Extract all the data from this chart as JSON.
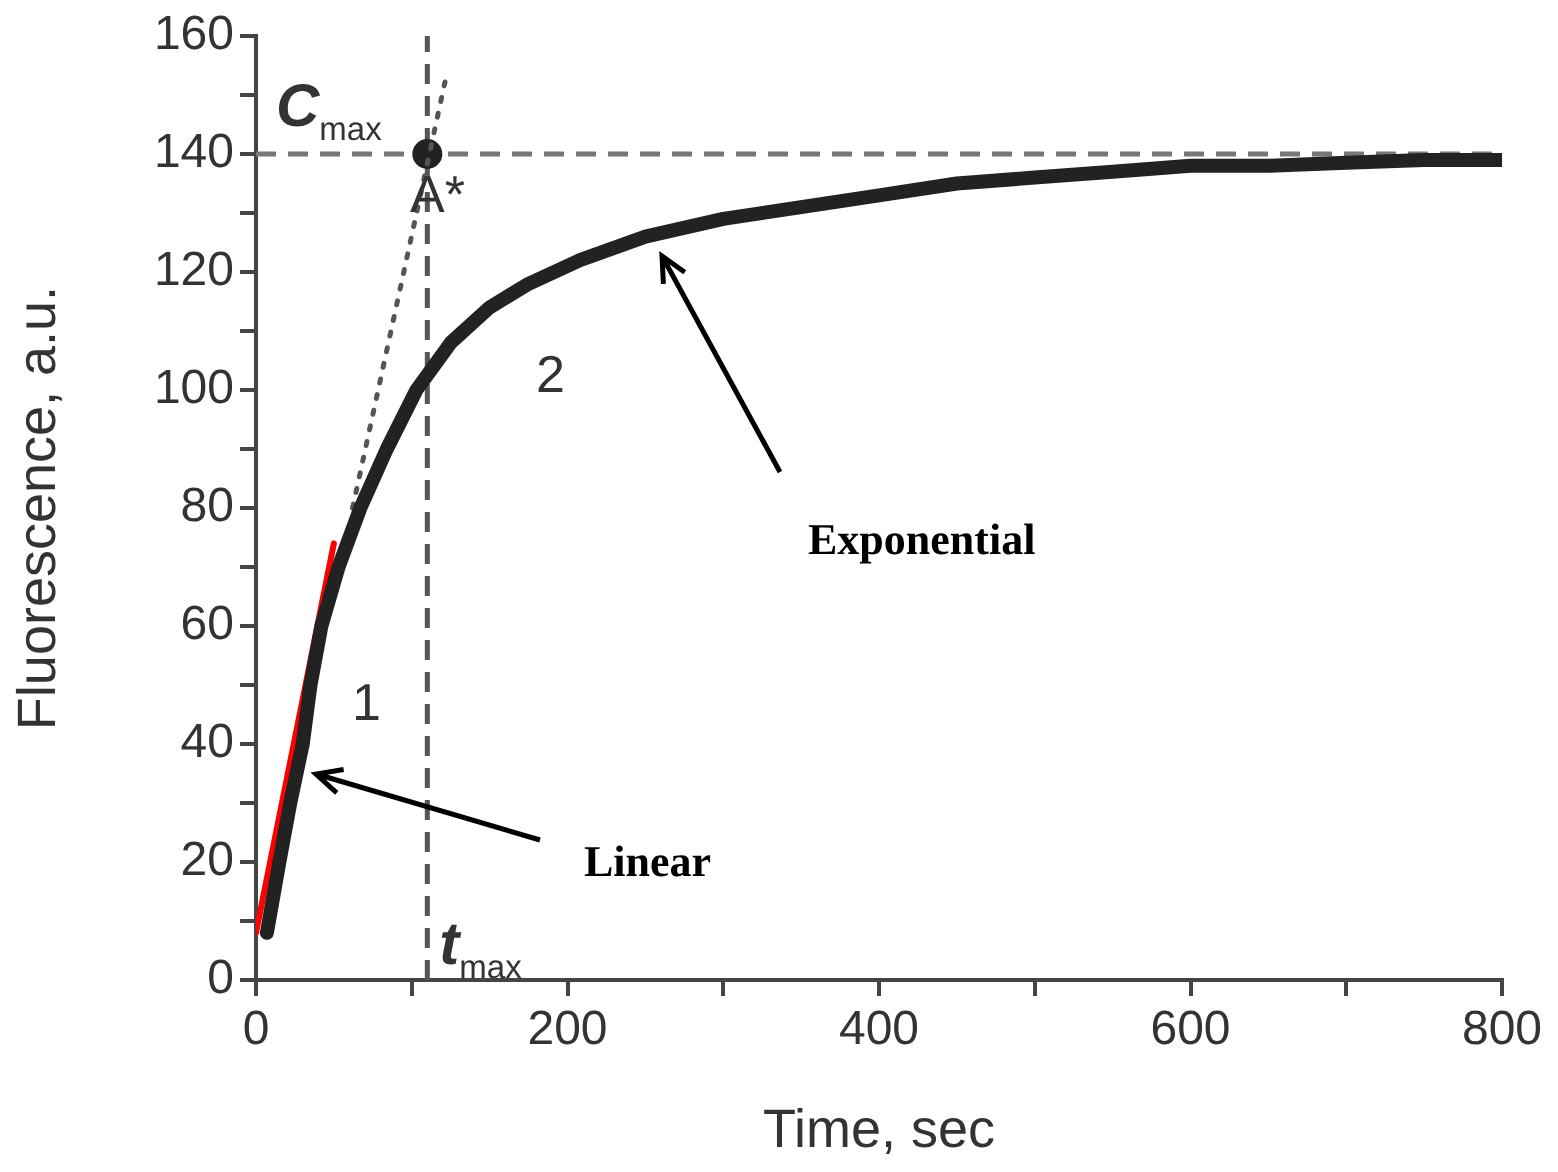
{
  "chart_data": {
    "type": "line",
    "xlabel": "Time, sec",
    "ylabel": "Fluorescence, a.u.",
    "xlim": [
      0,
      800
    ],
    "xticks": [
      0,
      {
        "value": 100,
        "label": null
      },
      200,
      {
        "value": 300,
        "label": null
      },
      400,
      {
        "value": 500,
        "label": null
      },
      600,
      {
        "value": 700,
        "label": null
      },
      800
    ],
    "ylim": [
      0,
      160
    ],
    "yticks": [
      0,
      {
        "value": 10,
        "label": null
      },
      20,
      {
        "value": 30,
        "label": null
      },
      40,
      {
        "value": 50,
        "label": null
      },
      60,
      {
        "value": 70,
        "label": null
      },
      80,
      {
        "value": 90,
        "label": null
      },
      100,
      {
        "value": 110,
        "label": null
      },
      120,
      {
        "value": 130,
        "label": null
      },
      140,
      {
        "value": 150,
        "label": null
      },
      160
    ],
    "grid": false,
    "legend": false,
    "series": [
      {
        "color": "#222222",
        "x": [
          7,
          15,
          22,
          30,
          35,
          42,
          53,
          67,
          84,
          103,
          125,
          150,
          175,
          208,
          250,
          300,
          350,
          400,
          450,
          500,
          550,
          600,
          650,
          700,
          750,
          800
        ],
        "values": [
          8,
          20,
          30,
          40,
          50,
          60,
          70,
          80,
          90,
          100,
          108,
          114,
          118,
          122,
          126,
          129,
          131,
          133,
          135,
          136,
          137,
          138,
          138,
          138.5,
          139,
          139
        ]
      },
      {
        "color": "#ff0000",
        "x": [
          0,
          50
        ],
        "values": [
          8,
          74
        ]
      },
      {
        "color": "#555555",
        "line_style": "dotted",
        "x": [
          62,
          122
        ],
        "values": [
          80,
          153
        ]
      },
      {
        "type": "scatter",
        "color": "#222222",
        "marker": "circle",
        "x": [
          110
        ],
        "values": [
          140
        ]
      }
    ],
    "ref_lines": [
      {
        "axis": "y",
        "value": 140,
        "label": "C$_{max}$",
        "color": "#777777",
        "line_style": "dashed"
      },
      {
        "axis": "x",
        "value": 110,
        "label": "t$_{max}$",
        "color": "#555555",
        "line_style": "dashed"
      }
    ],
    "annotations": [
      "A*",
      "1",
      "2",
      "Linear",
      "Exponential"
    ]
  }
}
